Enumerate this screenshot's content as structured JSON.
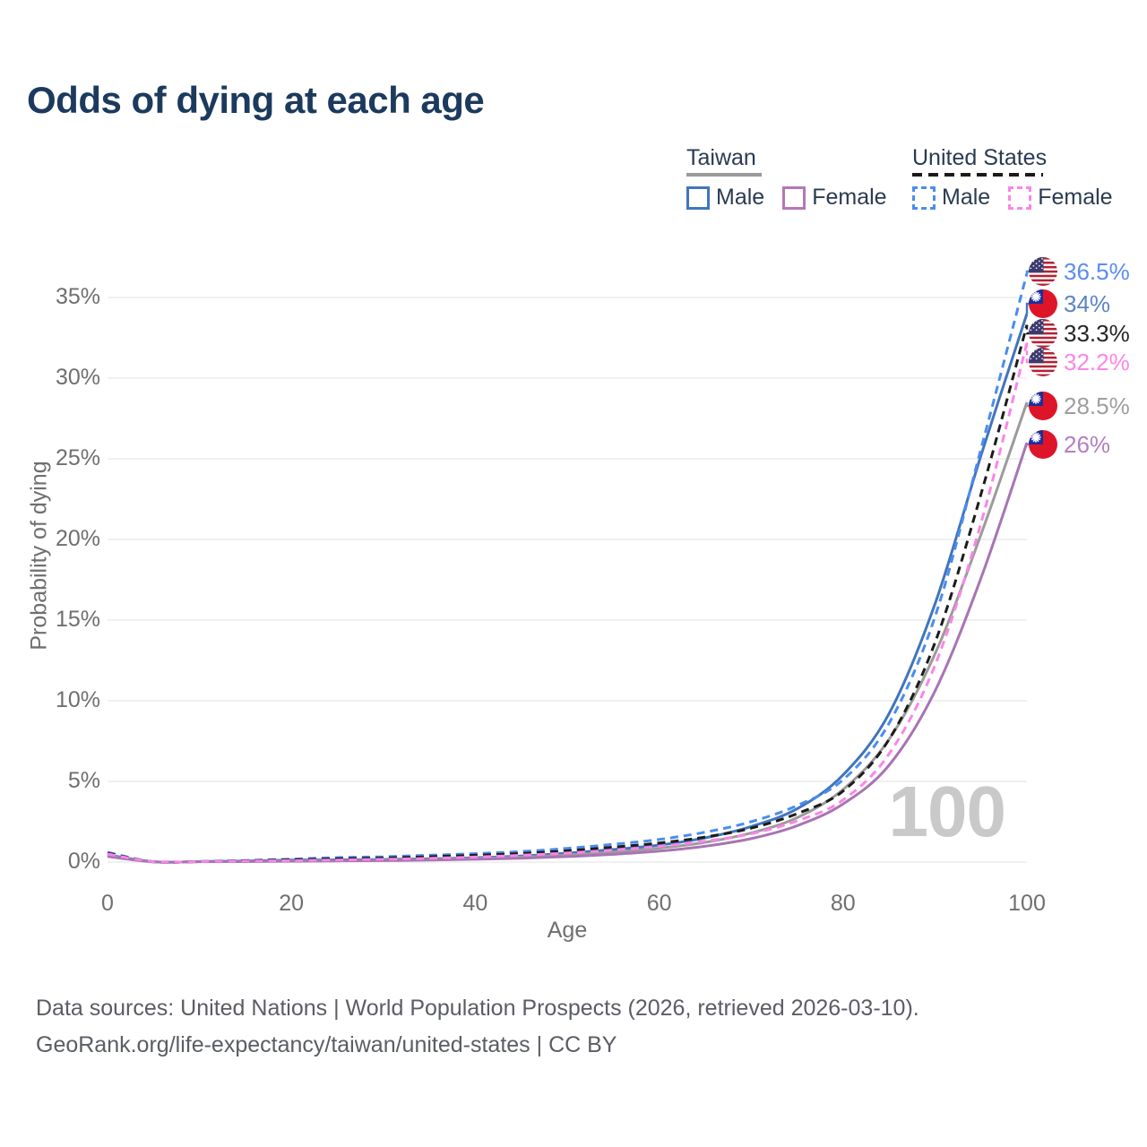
{
  "title": "Odds of dying at each age",
  "legend": {
    "groups": [
      {
        "id": "taiwan",
        "label": "Taiwan",
        "swatch_color": "#9B9B9B",
        "swatch_style": "solid",
        "items": [
          {
            "id": "tw_male",
            "label": "Male",
            "color": "#4175BC",
            "style": "solid"
          },
          {
            "id": "tw_female",
            "label": "Female",
            "color": "#B576B8",
            "style": "solid"
          }
        ]
      },
      {
        "id": "united-states",
        "label": "United States",
        "swatch_color": "#1A1A1A",
        "swatch_style": "dashed",
        "items": [
          {
            "id": "us_male",
            "label": "Male",
            "color": "#4A8CF0",
            "style": "dashed"
          },
          {
            "id": "us_female",
            "label": "Female",
            "color": "#FA85E8",
            "style": "dashed"
          }
        ]
      }
    ]
  },
  "watermark": "100",
  "footer": {
    "line1": "Data sources: United Nations | World Population Prospects (2026, retrieved 2026-03-10).",
    "line2": "GeoRank.org/life-expectancy/taiwan/united-states | CC BY"
  },
  "chart_data": {
    "type": "line",
    "title": "Odds of dying at each age",
    "xlabel": "Age",
    "ylabel": "Probability of dying",
    "x_ticks": [
      0,
      20,
      40,
      60,
      80,
      100
    ],
    "y_ticks": [
      "0%",
      "5%",
      "10%",
      "15%",
      "20%",
      "25%",
      "30%",
      "35%"
    ],
    "xlim": [
      0,
      100
    ],
    "ylim": [
      0,
      37
    ],
    "grid": "horizontal",
    "legend_position": "top-right",
    "ages": [
      0,
      5,
      10,
      15,
      20,
      25,
      30,
      35,
      40,
      45,
      50,
      55,
      60,
      65,
      70,
      75,
      80,
      85,
      90,
      95,
      100
    ],
    "series": [
      {
        "name": "United States Male",
        "id": "us_male",
        "country": "us",
        "color": "#4A8CF0",
        "label_color": "#5A8DF0",
        "dash": true,
        "end_label": "36.5%",
        "values": [
          0.6,
          0.02,
          0.04,
          0.1,
          0.18,
          0.28,
          0.33,
          0.42,
          0.52,
          0.65,
          0.85,
          1.1,
          1.4,
          1.85,
          2.5,
          3.5,
          5.1,
          8.6,
          15.2,
          25.6,
          36.5
        ]
      },
      {
        "name": "Taiwan Male",
        "id": "tw_male",
        "country": "tw",
        "color": "#4175BC",
        "label_color": "#5B84C6",
        "dash": false,
        "end_label": "34%",
        "values": [
          0.45,
          0.02,
          0.03,
          0.07,
          0.12,
          0.14,
          0.16,
          0.2,
          0.27,
          0.38,
          0.55,
          0.78,
          1.05,
          1.5,
          2.2,
          3.3,
          5.4,
          9.2,
          16.0,
          25.2,
          34.0
        ]
      },
      {
        "name": "United States Total",
        "id": "us_total",
        "country": "us",
        "color": "#1C1C1C",
        "label_color": "#262626",
        "dash": true,
        "end_label": "33.3%",
        "values": [
          0.55,
          0.02,
          0.03,
          0.08,
          0.14,
          0.2,
          0.25,
          0.33,
          0.42,
          0.53,
          0.7,
          0.92,
          1.18,
          1.55,
          2.1,
          3.0,
          4.4,
          7.6,
          13.6,
          22.8,
          33.3
        ]
      },
      {
        "name": "United States Female",
        "id": "us_female",
        "country": "us",
        "color": "#FA85E8",
        "label_color": "#FB86EA",
        "dash": true,
        "end_label": "32.2%",
        "values": [
          0.5,
          0.02,
          0.03,
          0.06,
          0.09,
          0.13,
          0.17,
          0.23,
          0.31,
          0.42,
          0.56,
          0.74,
          0.97,
          1.3,
          1.75,
          2.55,
          3.85,
          6.7,
          12.2,
          21.0,
          32.2
        ]
      },
      {
        "name": "Taiwan Total",
        "id": "tw_total",
        "country": "tw",
        "color": "#9B9B9B",
        "label_color": "#9E9E9E",
        "dash": false,
        "end_label": "28.5%",
        "values": [
          0.4,
          0.015,
          0.025,
          0.05,
          0.08,
          0.1,
          0.12,
          0.16,
          0.22,
          0.31,
          0.44,
          0.62,
          0.86,
          1.22,
          1.8,
          2.75,
          4.5,
          7.6,
          12.9,
          20.3,
          28.5
        ]
      },
      {
        "name": "Taiwan Female",
        "id": "tw_female",
        "country": "tw",
        "color": "#A874B4",
        "label_color": "#B27FC2",
        "dash": false,
        "end_label": "26%",
        "values": [
          0.35,
          0.01,
          0.02,
          0.03,
          0.05,
          0.07,
          0.09,
          0.12,
          0.17,
          0.24,
          0.34,
          0.48,
          0.68,
          0.98,
          1.45,
          2.25,
          3.6,
          6.0,
          10.6,
          17.6,
          26.0
        ]
      }
    ]
  }
}
